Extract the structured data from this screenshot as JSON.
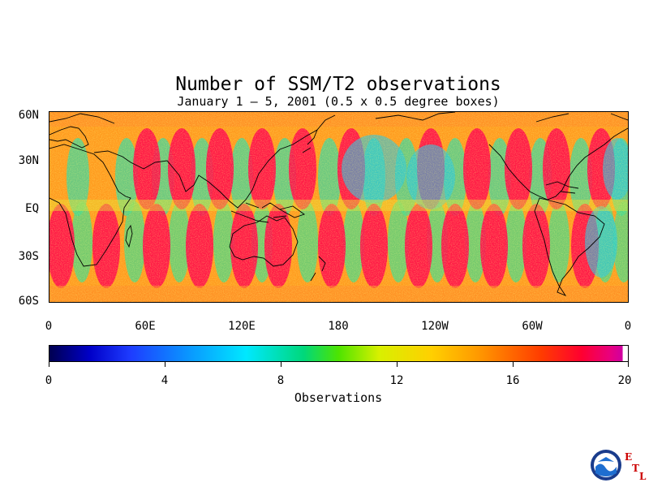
{
  "title": "Number of SSM/T2 observations",
  "subtitle": "January 1 – 5, 2001 (0.5 x 0.5 degree boxes)",
  "map": {
    "lat_labels": [
      "60N",
      "30N",
      "EQ",
      "30S",
      "60S"
    ],
    "lon_labels": [
      "0",
      "60E",
      "120E",
      "180",
      "120W",
      "60W",
      "0"
    ],
    "lat_range": [
      -60,
      60
    ],
    "lon_range": [
      0,
      360
    ]
  },
  "colorbar": {
    "ticks": [
      "0",
      "4",
      "8",
      "12",
      "16",
      "20"
    ],
    "label": "Observations",
    "range": [
      0,
      20
    ]
  },
  "logo": {
    "name": "NOAA",
    "letters": [
      "E",
      "T",
      "L"
    ]
  }
}
